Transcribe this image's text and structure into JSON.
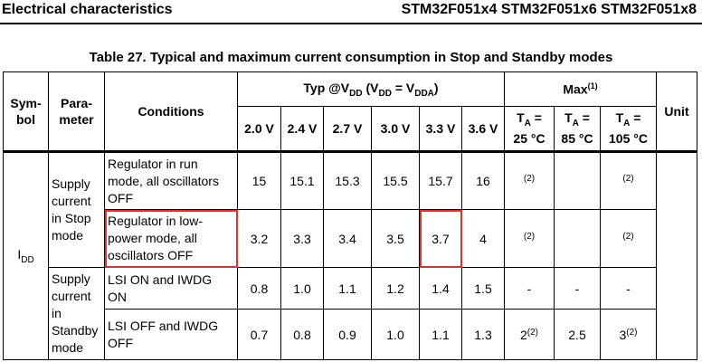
{
  "header": {
    "section": "Electrical characteristics",
    "devices": "STM32F051x4 STM32F051x6 STM32F051x8"
  },
  "caption": "Table 27. Typical and maximum current consumption in Stop and Standby modes",
  "columns": {
    "symbol": "Sym-bol",
    "parameter": "Para-meter",
    "conditions": "Conditions",
    "typ_prefix": "Typ @V",
    "typ_sub1": "DD",
    "typ_mid": " (V",
    "typ_sub2": "DD",
    "typ_eq": " = V",
    "typ_sub3": "DDA",
    "typ_end": ")",
    "max": "Max",
    "max_note": "(1)",
    "unit": "Unit",
    "voltages": [
      "2.0 V",
      "2.4 V",
      "2.7 V",
      "3.0 V",
      "3.3 V",
      "3.6 V"
    ],
    "temps": [
      {
        "t": "T",
        "sub": "A",
        "eq": " =",
        "val": "25 °C"
      },
      {
        "t": "T",
        "sub": "A",
        "eq": " =",
        "val": "85 °C"
      },
      {
        "t": "T",
        "sub": "A",
        "eq": " =",
        "val": "105 °C"
      }
    ]
  },
  "symbol_main": "I",
  "symbol_sub": "DD",
  "groups": [
    {
      "parameter": "Supply current in Stop mode",
      "rows": [
        {
          "condition": "Regulator in run mode, all oscillators OFF",
          "typ": [
            "15",
            "15.1",
            "15.3",
            "15.5",
            "15.7",
            "16"
          ],
          "max": [
            {
              "v": "",
              "note": "(2)"
            },
            {
              "v": "",
              "note": ""
            },
            {
              "v": "",
              "note": "(2)"
            }
          ]
        },
        {
          "condition": "Regulator in low-power mode, all oscillators OFF",
          "typ": [
            "3.2",
            "3.3",
            "3.4",
            "3.5",
            "3.7",
            "4"
          ],
          "max": [
            {
              "v": "",
              "note": "(2)"
            },
            {
              "v": "",
              "note": ""
            },
            {
              "v": "",
              "note": "(2)"
            }
          ]
        }
      ]
    },
    {
      "parameter": "Supply current in Standby mode",
      "rows": [
        {
          "condition": "LSI ON and IWDG ON",
          "typ": [
            "0.8",
            "1.0",
            "1.1",
            "1.2",
            "1.4",
            "1.5"
          ],
          "max": [
            {
              "v": "-",
              "note": ""
            },
            {
              "v": "-",
              "note": ""
            },
            {
              "v": "-",
              "note": ""
            }
          ]
        },
        {
          "condition": "LSI OFF and IWDG OFF",
          "typ": [
            "0.7",
            "0.8",
            "0.9",
            "1.0",
            "1.1",
            "1.3"
          ],
          "max": [
            {
              "v": "2",
              "note": "(2)"
            },
            {
              "v": "2.5",
              "note": ""
            },
            {
              "v": "3",
              "note": "(2)"
            }
          ]
        }
      ]
    }
  ],
  "highlight_color": "#e03030"
}
